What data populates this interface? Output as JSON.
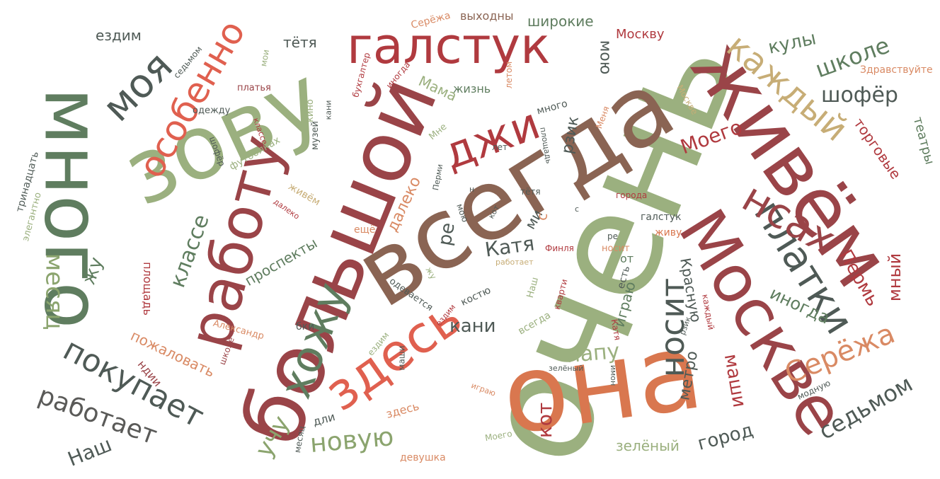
{
  "colors": {
    "green": "#8ba46e",
    "dark_green": "#5f7d5f",
    "sage": "#9bb07f",
    "red": "#b03a3f",
    "maroon": "#9a4448",
    "coral": "#e0604f",
    "orange": "#d9774f",
    "brown": "#8a6453",
    "tan": "#c7ad76",
    "slate": "#4f5a56",
    "gray": "#5a5a58",
    "peach": "#d98a64"
  },
  "words": [
    {
      "text": "очень",
      "color": "sage"
    },
    {
      "text": "всегда",
      "color": "brown"
    },
    {
      "text": "она",
      "color": "orange"
    },
    {
      "text": "большой",
      "color": "maroon"
    },
    {
      "text": "живём",
      "color": "maroon"
    },
    {
      "text": "зову",
      "color": "sage"
    },
    {
      "text": "много",
      "color": "dark_green"
    },
    {
      "text": "Москве",
      "color": "maroon"
    },
    {
      "text": "галстук",
      "color": "red"
    },
    {
      "text": "работу",
      "color": "maroon"
    },
    {
      "text": "здесь",
      "color": "coral"
    },
    {
      "text": "хожу",
      "color": "dark_green"
    },
    {
      "text": "платки",
      "color": "slate"
    },
    {
      "text": "каждый",
      "color": "tan"
    },
    {
      "text": "особенно",
      "color": "coral"
    },
    {
      "text": "моя",
      "color": "slate"
    },
    {
      "text": "покупает",
      "color": "slate"
    },
    {
      "text": "работает",
      "color": "gray"
    },
    {
      "text": "Серёжа",
      "color": "peach"
    },
    {
      "text": "носит",
      "color": "slate"
    },
    {
      "text": "новую",
      "color": "green"
    },
    {
      "text": "седьмом",
      "color": "slate"
    },
    {
      "text": "пожаловать",
      "color": "peach"
    },
    {
      "text": "джи",
      "color": "red"
    },
    {
      "text": "Катя",
      "color": "slate"
    },
    {
      "text": "школе",
      "color": "dark_green"
    },
    {
      "text": "шофёр",
      "color": "slate"
    },
    {
      "text": "кулы",
      "color": "dark_green"
    },
    {
      "text": "нсах",
      "color": "maroon"
    },
    {
      "text": "месяц",
      "color": "green"
    },
    {
      "text": "Наш",
      "color": "slate"
    },
    {
      "text": "учу",
      "color": "green"
    },
    {
      "text": "классе",
      "color": "dark_green"
    },
    {
      "text": "зелёный",
      "color": "sage"
    },
    {
      "text": "город",
      "color": "slate"
    },
    {
      "text": "маши",
      "color": "red"
    },
    {
      "text": "метро",
      "color": "slate"
    },
    {
      "text": "иногда",
      "color": "dark_green"
    },
    {
      "text": "Пермь",
      "color": "red"
    },
    {
      "text": "мный",
      "color": "red"
    },
    {
      "text": "кот",
      "color": "red"
    },
    {
      "text": "папу",
      "color": "sage"
    },
    {
      "text": "кани",
      "color": "slate"
    },
    {
      "text": "далеко",
      "color": "peach"
    },
    {
      "text": "проспекты",
      "color": "dark_green"
    },
    {
      "text": "Моего",
      "color": "red"
    },
    {
      "text": "торговые",
      "color": "red"
    },
    {
      "text": "театры",
      "color": "dark_green"
    },
    {
      "text": "Здравствуйте",
      "color": "peach"
    },
    {
      "text": "широкие",
      "color": "dark_green"
    },
    {
      "text": "выходны",
      "color": "brown"
    },
    {
      "text": "Серёжа",
      "color": "peach"
    },
    {
      "text": "Москву",
      "color": "red"
    },
    {
      "text": "мою",
      "color": "slate"
    },
    {
      "text": "тётя",
      "color": "slate"
    },
    {
      "text": "ездим",
      "color": "slate"
    },
    {
      "text": "седьмом",
      "color": "slate"
    },
    {
      "text": "мои",
      "color": "sage"
    },
    {
      "text": "платья",
      "color": "maroon"
    },
    {
      "text": "одежду",
      "color": "slate"
    },
    {
      "text": "бухгалтер",
      "color": "red"
    },
    {
      "text": "иногда",
      "color": "red"
    },
    {
      "text": "летом",
      "color": "peach"
    },
    {
      "text": "Мама",
      "color": "sage"
    },
    {
      "text": "жизнь",
      "color": "dark_green"
    },
    {
      "text": "много",
      "color": "slate"
    },
    {
      "text": "Меня",
      "color": "peach"
    },
    {
      "text": "Москве",
      "color": "tan"
    },
    {
      "text": "Мне",
      "color": "sage"
    },
    {
      "text": "лет",
      "color": "slate"
    },
    {
      "text": "площадь",
      "color": "slate"
    },
    {
      "text": "рзик",
      "color": "slate"
    },
    {
      "text": "города",
      "color": "red"
    },
    {
      "text": "галстук",
      "color": "slate"
    },
    {
      "text": "живу",
      "color": "orange"
    },
    {
      "text": "носит",
      "color": "peach"
    },
    {
      "text": "ре",
      "color": "slate"
    },
    {
      "text": "ми",
      "color": "slate"
    },
    {
      "text": "Финля",
      "color": "red"
    },
    {
      "text": "работает",
      "color": "tan"
    },
    {
      "text": "Наш",
      "color": "sage"
    },
    {
      "text": "кварти",
      "color": "red"
    },
    {
      "text": "жу",
      "color": "sage"
    },
    {
      "text": "костю",
      "color": "slate"
    },
    {
      "text": "всегда",
      "color": "sage"
    },
    {
      "text": "одевается",
      "color": "slate"
    },
    {
      "text": "ездим",
      "color": "red"
    },
    {
      "text": "бки",
      "color": "slate"
    },
    {
      "text": "Александр",
      "color": "peach"
    },
    {
      "text": "школе",
      "color": "maroon"
    },
    {
      "text": "ездим",
      "color": "sage"
    },
    {
      "text": "маши",
      "color": "slate"
    },
    {
      "text": "играю",
      "color": "peach"
    },
    {
      "text": "здесь",
      "color": "peach"
    },
    {
      "text": "дли",
      "color": "slate"
    },
    {
      "text": "месяц",
      "color": "slate"
    },
    {
      "text": "девушка",
      "color": "peach"
    },
    {
      "text": "Моего",
      "color": "sage"
    },
    {
      "text": "зелёный",
      "color": "slate"
    },
    {
      "text": "имон",
      "color": "slate"
    },
    {
      "text": "модную",
      "color": "slate"
    },
    {
      "text": "рзик",
      "color": "slate"
    },
    {
      "text": "каждый",
      "color": "red"
    },
    {
      "text": "Катя",
      "color": "red"
    },
    {
      "text": "есть",
      "color": "slate"
    },
    {
      "text": "Красную",
      "color": "slate"
    },
    {
      "text": "от",
      "color": "dark_green"
    },
    {
      "text": "играю",
      "color": "dark_green"
    },
    {
      "text": "ещё",
      "color": "peach"
    },
    {
      "text": "далеко",
      "color": "red"
    },
    {
      "text": "живём",
      "color": "tan"
    },
    {
      "text": "футболках",
      "color": "sage"
    },
    {
      "text": "музей",
      "color": "slate"
    },
    {
      "text": "кино",
      "color": "sage"
    },
    {
      "text": "кани",
      "color": "slate"
    },
    {
      "text": "классе",
      "color": "red"
    },
    {
      "text": "шофёр",
      "color": "slate"
    },
    {
      "text": "элегантно",
      "color": "sage"
    },
    {
      "text": "тринадцать",
      "color": "slate"
    },
    {
      "text": "площадь",
      "color": "red"
    },
    {
      "text": "ндии",
      "color": "maroon"
    },
    {
      "text": "жу",
      "color": "dark_green"
    },
    {
      "text": "кот",
      "color": "slate"
    },
    {
      "text": "тётя",
      "color": "slate"
    },
    {
      "text": "мою",
      "color": "slate"
    },
    {
      "text": "Перми",
      "color": "slate"
    },
    {
      "text": "н",
      "color": "slate"
    },
    {
      "text": "с",
      "color": "slate"
    },
    {
      "text": "ре",
      "color": "slate"
    },
    {
      "text": "с",
      "color": "peach"
    }
  ]
}
